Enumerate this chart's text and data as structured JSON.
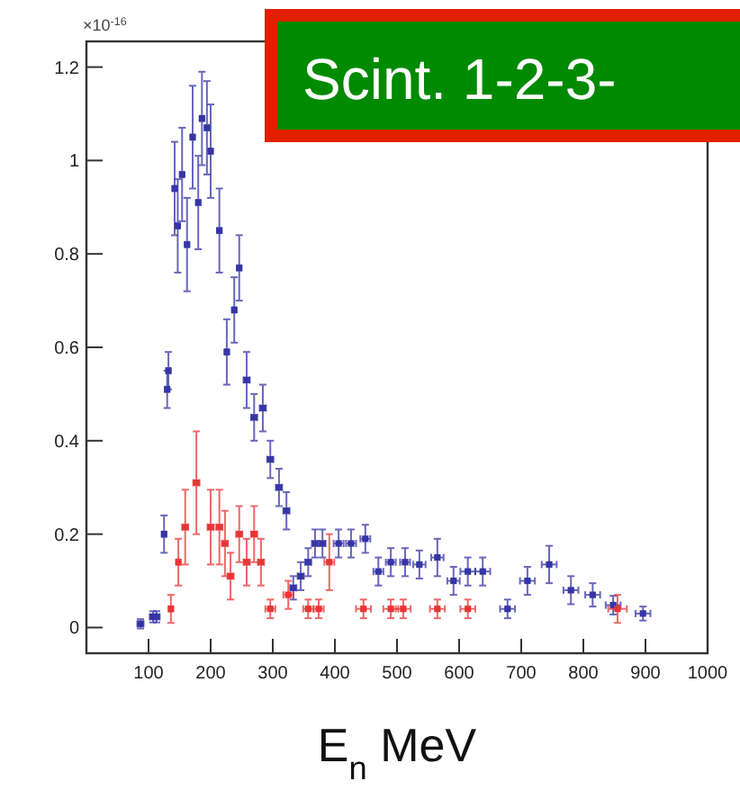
{
  "chart_data": {
    "type": "scatter",
    "xlabel": "E$_{n}$ MeV",
    "annotations": [
      "Scint. 1-2-3-",
      "×10$^{-16}$"
    ],
    "xlim": [
      0,
      1000
    ],
    "xticks": [
      100,
      200,
      300,
      400,
      500,
      600,
      700,
      800,
      900,
      1000
    ],
    "ylim": [
      -0.055,
      1.255
    ],
    "yticks": [
      0,
      0.2,
      0.4,
      0.6,
      0.8,
      1,
      1.2
    ],
    "grid": false,
    "marker": "square",
    "series": [
      {
        "color": "#3535a5",
        "x": [
          87,
          107,
          113,
          125,
          130,
          132,
          142,
          147,
          154,
          162,
          171,
          180,
          186,
          194,
          200,
          214,
          226,
          238,
          246,
          258,
          270,
          284,
          296,
          310,
          322,
          333,
          345,
          357,
          368,
          380,
          406,
          426,
          449,
          470,
          490,
          513,
          536,
          565,
          591,
          614,
          638,
          678,
          710,
          745,
          780,
          815,
          848,
          896
        ],
        "values": [
          0.008,
          0.023,
          0.023,
          0.2,
          0.51,
          0.55,
          0.94,
          0.86,
          0.97,
          0.82,
          1.05,
          0.91,
          1.09,
          1.07,
          1.02,
          0.85,
          0.59,
          0.68,
          0.77,
          0.53,
          0.45,
          0.47,
          0.36,
          0.3,
          0.25,
          0.085,
          0.11,
          0.14,
          0.18,
          0.18,
          0.18,
          0.18,
          0.19,
          0.12,
          0.14,
          0.14,
          0.135,
          0.15,
          0.1,
          0.12,
          0.12,
          0.04,
          0.1,
          0.135,
          0.08,
          0.07,
          0.048,
          0.03
        ],
        "errors": [
          0.01,
          0.012,
          0.012,
          0.04,
          0.04,
          0.04,
          0.1,
          0.1,
          0.1,
          0.1,
          0.11,
          0.1,
          0.1,
          0.1,
          0.1,
          0.09,
          0.07,
          0.07,
          0.07,
          0.06,
          0.05,
          0.05,
          0.04,
          0.04,
          0.04,
          0.025,
          0.03,
          0.03,
          0.03,
          0.03,
          0.03,
          0.03,
          0.03,
          0.03,
          0.03,
          0.03,
          0.03,
          0.04,
          0.03,
          0.03,
          0.03,
          0.02,
          0.03,
          0.04,
          0.03,
          0.025,
          0.02,
          0.015
        ],
        "xerrors": [
          5,
          5,
          5,
          3,
          3,
          3,
          3,
          3,
          3,
          3,
          3,
          3,
          3,
          3,
          3,
          3,
          3,
          3,
          3,
          5,
          5,
          5,
          5,
          5,
          5,
          5,
          5,
          5,
          5,
          5,
          8,
          8,
          8,
          8,
          8,
          8,
          10,
          10,
          10,
          12,
          12,
          12,
          12,
          12,
          12,
          12,
          12,
          12
        ]
      },
      {
        "color": "#e83535",
        "x": [
          136,
          148,
          159,
          177,
          200,
          214,
          223,
          232,
          246,
          258,
          270,
          281,
          296,
          325,
          357,
          374,
          391,
          446,
          490,
          510,
          565,
          614,
          855
        ],
        "values": [
          0.04,
          0.14,
          0.215,
          0.31,
          0.215,
          0.215,
          0.18,
          0.11,
          0.2,
          0.14,
          0.2,
          0.14,
          0.04,
          0.07,
          0.04,
          0.04,
          0.14,
          0.04,
          0.04,
          0.04,
          0.04,
          0.04,
          0.04
        ],
        "errors": [
          0.03,
          0.05,
          0.08,
          0.11,
          0.08,
          0.08,
          0.07,
          0.05,
          0.06,
          0.05,
          0.06,
          0.05,
          0.02,
          0.03,
          0.02,
          0.02,
          0.06,
          0.02,
          0.02,
          0.02,
          0.02,
          0.02,
          0.03
        ],
        "xerrors": [
          3,
          3,
          5,
          5,
          5,
          5,
          5,
          5,
          5,
          5,
          5,
          5,
          8,
          8,
          8,
          8,
          8,
          12,
          12,
          12,
          12,
          12,
          15
        ]
      }
    ]
  }
}
